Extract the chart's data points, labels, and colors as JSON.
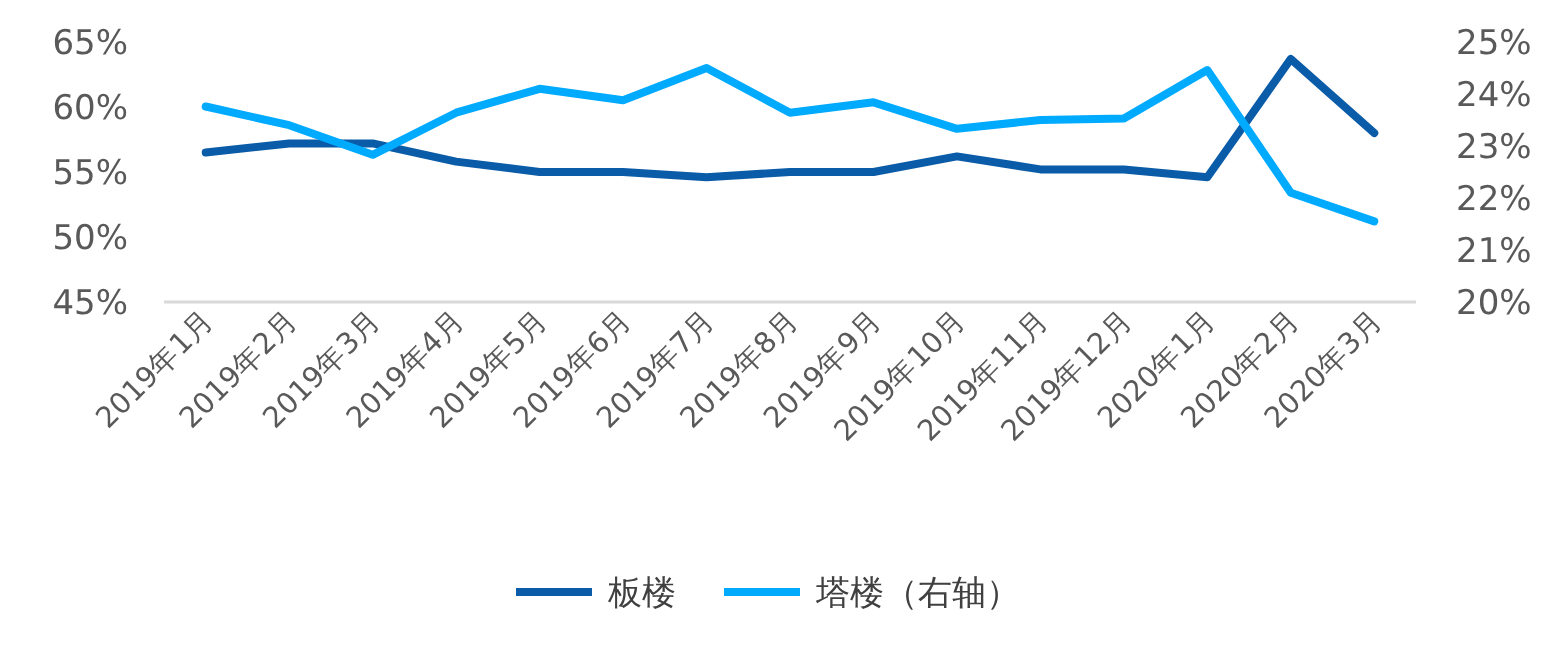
{
  "chart_data": {
    "type": "line",
    "categories": [
      "2019年1月",
      "2019年2月",
      "2019年3月",
      "2019年4月",
      "2019年5月",
      "2019年6月",
      "2019年7月",
      "2019年8月",
      "2019年9月",
      "2019年10月",
      "2019年11月",
      "2019年12月",
      "2020年1月",
      "2020年2月",
      "2020年3月"
    ],
    "series": [
      {
        "name": "板楼",
        "color": "#0a5ba8",
        "values": [
          56.5,
          57.2,
          57.2,
          55.8,
          55.0,
          55.0,
          54.6,
          55.0,
          55.0,
          56.2,
          55.2,
          55.2,
          54.6,
          63.7,
          58.0
        ]
      },
      {
        "name": "塔楼（右轴）",
        "color": "#00aaff",
        "axis": "y2",
        "values": [
          23.76,
          23.4,
          22.83,
          23.64,
          24.1,
          23.88,
          24.5,
          23.64,
          23.84,
          23.33,
          23.5,
          23.53,
          24.46,
          22.1,
          21.55
        ]
      }
    ],
    "ylim": [
      45,
      65
    ],
    "yticks": [
      {
        "value": 45,
        "label": "45%"
      },
      {
        "value": 50,
        "label": "50%"
      },
      {
        "value": 55,
        "label": "55%"
      },
      {
        "value": 60,
        "label": "60%"
      },
      {
        "value": 65,
        "label": "65%"
      }
    ],
    "y2lim": [
      20,
      25
    ],
    "y2ticks": [
      {
        "value": 20,
        "label": "20%"
      },
      {
        "value": 21,
        "label": "21%"
      },
      {
        "value": 22,
        "label": "22%"
      },
      {
        "value": 23,
        "label": "23%"
      },
      {
        "value": 24,
        "label": "24%"
      },
      {
        "value": 25,
        "label": "25%"
      }
    ],
    "grid": false,
    "legend": "bottom",
    "marker": "none",
    "line_style": "solid"
  }
}
